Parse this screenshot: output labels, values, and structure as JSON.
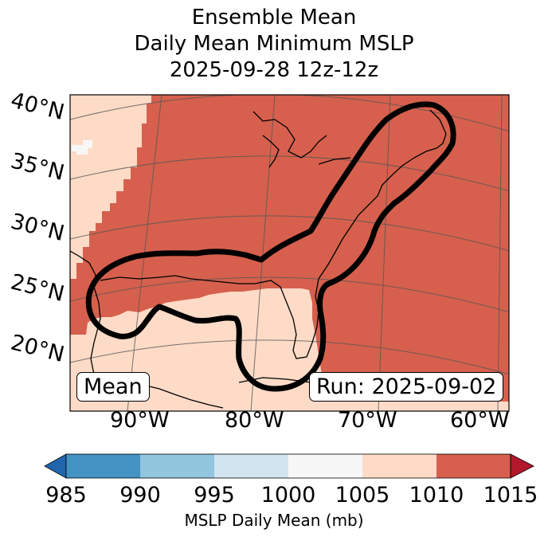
{
  "title": {
    "line1": "Ensemble Mean",
    "line2": "Daily Mean Minimum MSLP",
    "line3": "2025-09-28 12z-12z"
  },
  "map": {
    "lat_labels": [
      "40°N",
      "35°N",
      "30°N",
      "25°N",
      "20°N"
    ],
    "lon_labels": [
      "90°W",
      "80°W",
      "70°W",
      "60°W"
    ],
    "mean_label": "Mean",
    "run_label": "Run: 2025-09-02",
    "colors": {
      "land_high": "#d6604d",
      "mid": "#fddbc7",
      "contour": "#000000"
    }
  },
  "colorbar": {
    "ticks": [
      "985",
      "990",
      "995",
      "1000",
      "1005",
      "1010",
      "1015"
    ],
    "label": "MSLP Daily Mean (mb)",
    "colors": [
      "#2166ac",
      "#4393c3",
      "#92c5de",
      "#d1e5f0",
      "#f7f7f7",
      "#fddbc7",
      "#d6604d",
      "#b2182b"
    ]
  }
}
